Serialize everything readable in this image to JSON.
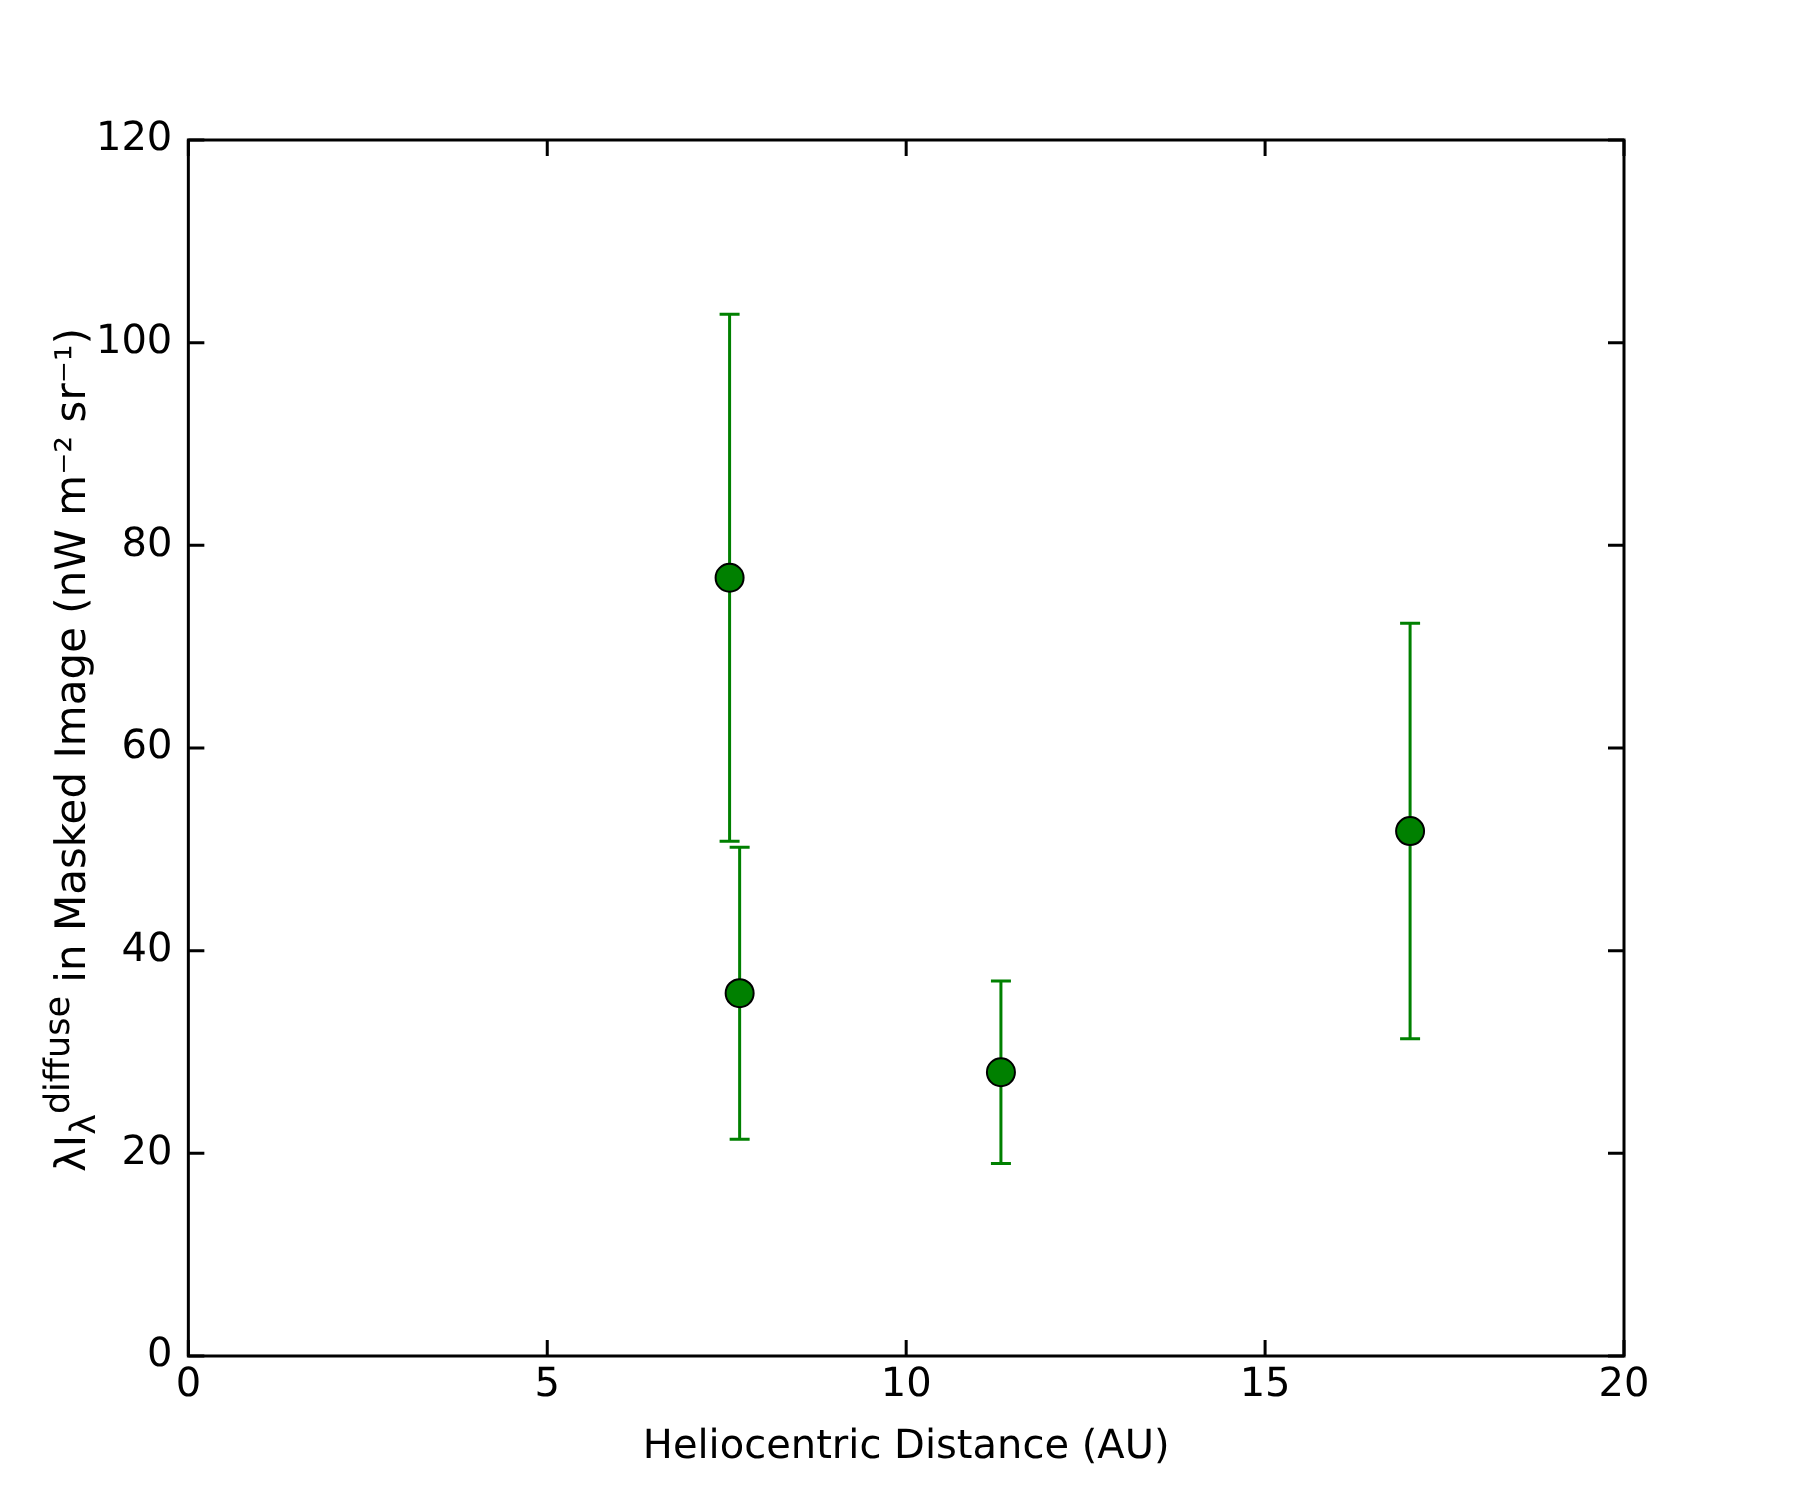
{
  "chart_data": {
    "type": "scatter",
    "xlabel": "Heliocentric Distance (AU)",
    "ylabel": "λI$_{λ}$$^{diffuse}$ in Masked Image (nW m⁻² sr⁻¹)",
    "x": [
      7.54,
      7.68,
      11.32,
      17.02
    ],
    "series": [
      {
        "color": "#008000",
        "values": [
          76.8,
          35.8,
          28,
          51.8
        ],
        "errors": [
          26,
          14.4,
          9,
          20.5
        ]
      }
    ],
    "xlim": [
      0,
      20
    ],
    "xticks": [
      0,
      5,
      10,
      15,
      20
    ],
    "ylim": [
      0,
      120
    ],
    "yticks": [
      0,
      20,
      40,
      60,
      80,
      100,
      120
    ],
    "grid": false,
    "legend": false,
    "marker": "circle"
  }
}
